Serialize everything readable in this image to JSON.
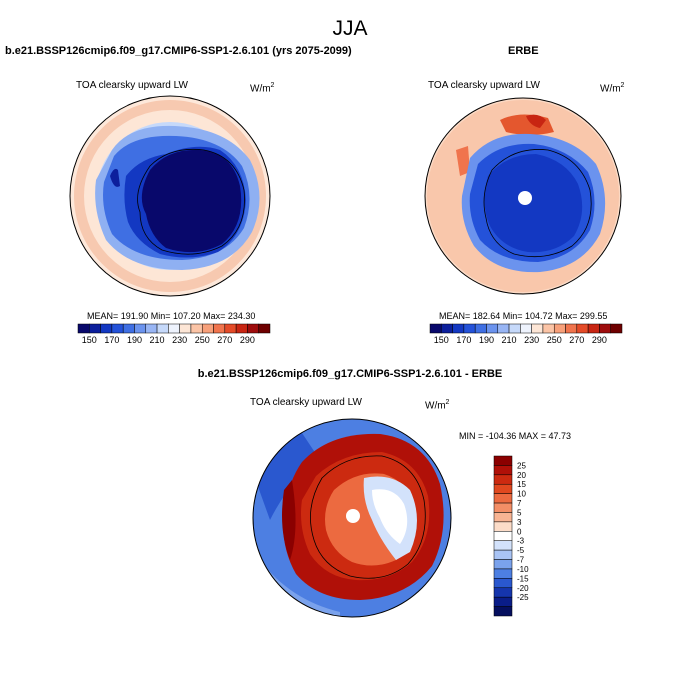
{
  "title": "JJA",
  "panels": [
    {
      "case_title": "b.e21.BSSP126cmip6.f09_g17.CMIP6-SSP1-2.6.101 (yrs 2075-2099)",
      "variable": "TOA clearsky upward LW",
      "units_base": "W/m",
      "units_exp": "2",
      "stats": "MEAN= 191.90  Min= 107.20  Max= 234.30"
    },
    {
      "case_title": "ERBE",
      "variable": "TOA clearsky upward LW",
      "units_base": "W/m",
      "units_exp": "2",
      "stats": "MEAN= 182.64  Min= 104.72  Max= 299.55"
    },
    {
      "case_title": "b.e21.BSSP126cmip6.f09_g17.CMIP6-SSP1-2.6.101 - ERBE",
      "variable": "TOA clearsky upward LW",
      "units_base": "W/m",
      "units_exp": "2",
      "stats": "MIN = -104.36  MAX =  47.73"
    }
  ],
  "colorbar_main": {
    "labels": [
      "150",
      "170",
      "190",
      "210",
      "230",
      "250",
      "270",
      "290"
    ],
    "colors": [
      "#08086b",
      "#0c1f9c",
      "#1338c2",
      "#2452d9",
      "#3f6fe3",
      "#6b93ee",
      "#98b5f4",
      "#c6d9fa",
      "#eef3fd",
      "#fde6d6",
      "#fbc4a6",
      "#f7a07a",
      "#f0744d",
      "#e44b28",
      "#c82512",
      "#9e0c0c",
      "#6e0000"
    ]
  },
  "colorbar_diff": {
    "labels": [
      "25",
      "20",
      "15",
      "10",
      "7",
      "5",
      "3",
      "0",
      "-3",
      "-5",
      "-7",
      "-10",
      "-15",
      "-20",
      "-25"
    ],
    "colors": [
      "#8b0000",
      "#b01008",
      "#cc2a10",
      "#e0481f",
      "#ec6a40",
      "#f38e66",
      "#f8b493",
      "#fcdcc8",
      "#ffffff",
      "#d3e2fb",
      "#a9c4f5",
      "#7aa2ec",
      "#4d7fe2",
      "#2a58cf",
      "#1535ad",
      "#0a1d88",
      "#050f5e"
    ]
  }
}
